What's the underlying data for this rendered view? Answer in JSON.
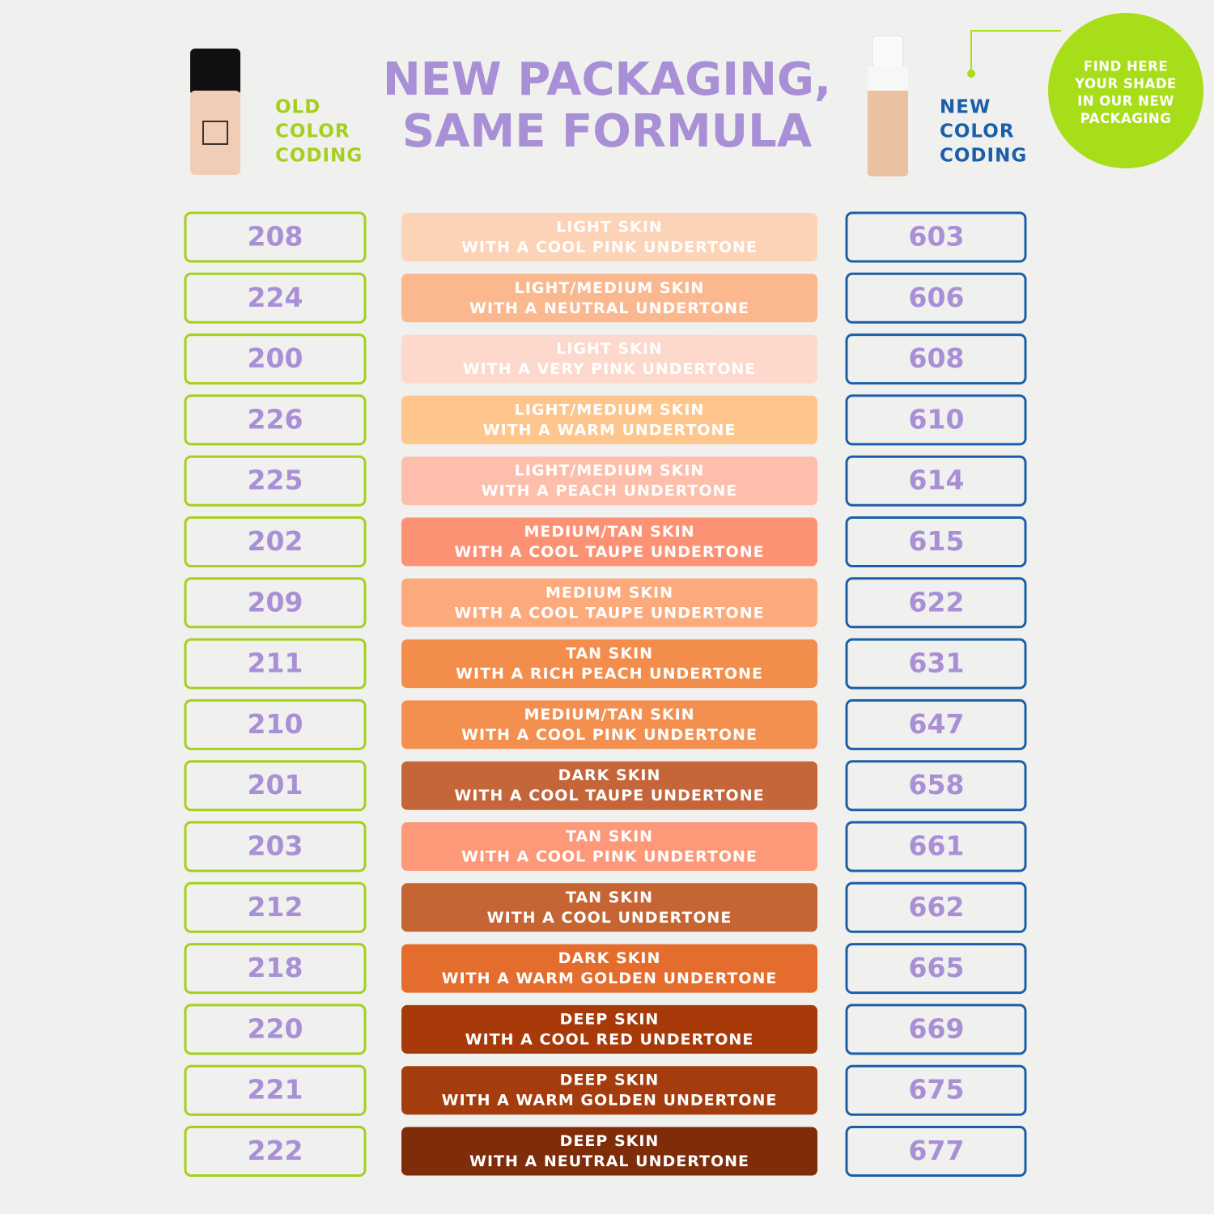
{
  "header": {
    "title": [
      "NEW PACKAGING,",
      "SAME FORMULA"
    ],
    "old_label": [
      "OLD",
      "COLOR",
      "CODING"
    ],
    "new_label": [
      "NEW",
      "COLOR",
      "CODING"
    ],
    "badge": [
      "FIND HERE",
      "YOUR SHADE",
      "IN OUR NEW",
      "PACKAGING"
    ]
  },
  "table": {
    "rows": [
      {
        "old": "208",
        "description": [
          "LIGHT SKIN",
          "WITH A COOL PINK UNDERTONE"
        ],
        "color": "#fdd3b8",
        "new": "603"
      },
      {
        "old": "224",
        "description": [
          "LIGHT/MEDIUM SKIN",
          "WITH A NEUTRAL UNDERTONE"
        ],
        "color": "#fbb88f",
        "new": "606"
      },
      {
        "old": "200",
        "description": [
          "LIGHT SKIN",
          "WITH A VERY PINK UNDERTONE"
        ],
        "color": "#fdd8cc",
        "new": "608"
      },
      {
        "old": "226",
        "description": [
          "LIGHT/MEDIUM SKIN",
          "WITH A WARM UNDERTONE"
        ],
        "color": "#fec68c",
        "new": "610"
      },
      {
        "old": "225",
        "description": [
          "LIGHT/MEDIUM SKIN",
          "WITH A PEACH UNDERTONE"
        ],
        "color": "#fdbfab",
        "new": "614"
      },
      {
        "old": "202",
        "description": [
          "MEDIUM/TAN SKIN",
          "WITH A COOL TAUPE UNDERTONE"
        ],
        "color": "#fd9173",
        "new": "615"
      },
      {
        "old": "209",
        "description": [
          "MEDIUM SKIN",
          "WITH A COOL TAUPE UNDERTONE"
        ],
        "color": "#fcaa7b",
        "new": "622"
      },
      {
        "old": "211",
        "description": [
          "TAN SKIN",
          "WITH A RICH PEACH UNDERTONE"
        ],
        "color": "#f38d4b",
        "new": "631"
      },
      {
        "old": "210",
        "description": [
          "MEDIUM/TAN SKIN",
          "WITH A COOL PINK UNDERTONE"
        ],
        "color": "#f38f4f",
        "new": "647"
      },
      {
        "old": "201",
        "description": [
          "DARK SKIN",
          "WITH A COOL TAUPE UNDERTONE"
        ],
        "color": "#c4653a",
        "new": "658"
      },
      {
        "old": "203",
        "description": [
          "TAN SKIN",
          "WITH A COOL PINK UNDERTONE"
        ],
        "color": "#fd9879",
        "new": "661"
      },
      {
        "old": "212",
        "description": [
          "TAN SKIN",
          "WITH A COOL UNDERTONE"
        ],
        "color": "#c56533",
        "new": "662"
      },
      {
        "old": "218",
        "description": [
          "DARK SKIN",
          "WITH A WARM GOLDEN UNDERTONE"
        ],
        "color": "#e46c2c",
        "new": "665"
      },
      {
        "old": "220",
        "description": [
          "DEEP SKIN",
          "WITH A COOL RED UNDERTONE"
        ],
        "color": "#a83a0a",
        "new": "669"
      },
      {
        "old": "221",
        "description": [
          "DEEP SKIN",
          "WITH A WARM GOLDEN UNDERTONE"
        ],
        "color": "#a53c0d",
        "new": "675"
      },
      {
        "old": "222",
        "description": [
          "DEEP SKIN",
          "WITH A NEUTRAL UNDERTONE"
        ],
        "color": "#7e2c09",
        "new": "677"
      }
    ]
  }
}
